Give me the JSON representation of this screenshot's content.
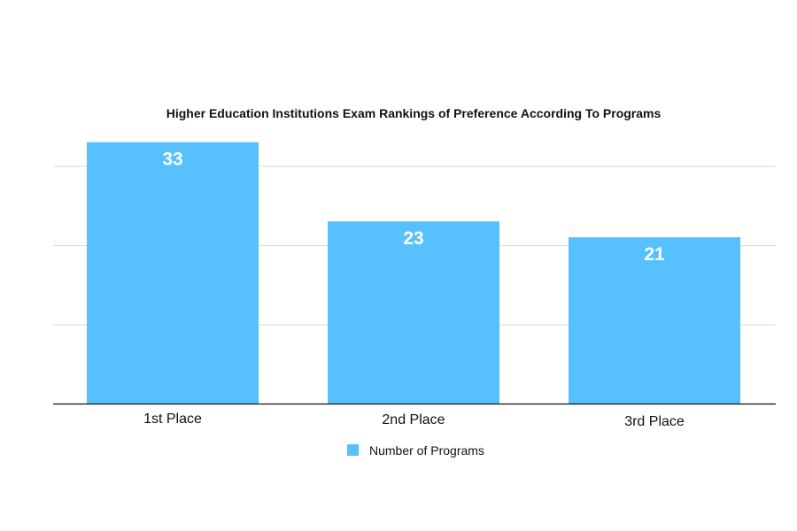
{
  "chart_data": {
    "type": "bar",
    "title": "Higher Education Institutions Exam Rankings of Preference According To Programs",
    "categories": [
      "1st Place",
      "2nd Place",
      "3rd Place"
    ],
    "series": [
      {
        "name": "Number of Programs",
        "values": [
          33,
          23,
          21
        ]
      }
    ],
    "xlabel": "",
    "ylabel": "",
    "ylim": [
      0,
      40
    ],
    "grid": true,
    "legend_position": "bottom",
    "colors": {
      "bar": "#56C1FE",
      "grid": "#D9D9D9",
      "axis": "#111111",
      "data_label": "#FFFFFF"
    }
  }
}
